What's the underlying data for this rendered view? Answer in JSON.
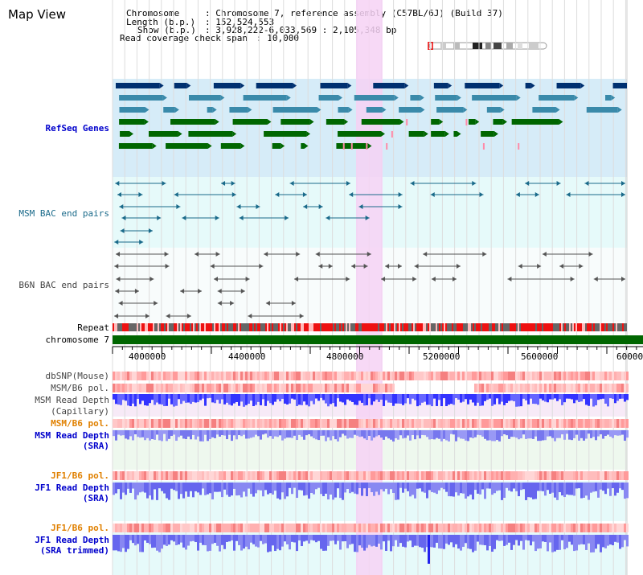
{
  "title": "Map View",
  "info": {
    "chromosome_key": "Chromosome",
    "chromosome_val": ": Chromosome 7, reference assembly (C57BL/6J) (Build 37)",
    "length_key": "Length (b.p.)",
    "length_val": ": 152,524,553",
    "show_key": "Show (b.p.)",
    "show_val": ": 3,928,222-6,033,569 : 2,105,348 bp",
    "span_key": "Read coverage check span",
    "span_val": ": 10,000"
  },
  "tracks": {
    "refseq": "RefSeq Genes",
    "msm_bac": "MSM BAC end pairs",
    "b6n_bac": "B6N BAC end pairs",
    "repeat": "Repeat",
    "chromosome": "chromosome 7",
    "dbsnp": "dbSNP(Mouse)",
    "msm_b6_pol_1": "MSM/B6 pol.",
    "msm_read_depth_cap_1": "MSM Read Depth",
    "msm_read_depth_cap_2": "(Capillary)",
    "msm_b6_pol_2": "MSM/B6 pol.",
    "msm_read_depth_sra_1": "MSM Read Depth",
    "msm_read_depth_sra_2": "(SRA)",
    "jf1_b6_pol_1": "JF1/B6 pol.",
    "jf1_read_depth_1": "JF1 Read Depth",
    "jf1_read_depth_2": "(SRA)",
    "jf1_b6_pol_2": "JF1/B6 pol.",
    "jf1_read_depth_trim_1": "JF1 Read Depth",
    "jf1_read_depth_trim_2": "(SRA trimmed)"
  },
  "axis": {
    "ticks": [
      "4000000",
      "4400000",
      "4800000",
      "5200000",
      "5600000",
      "6000000"
    ]
  },
  "colors": {
    "refseq_bg": "#d6ecf8",
    "bac_bg": "#e6fafa",
    "highlight": "#f6d2f4",
    "gene_dark": "#003070",
    "gene_mid": "#3a8aaa",
    "gene_green": "#006600",
    "chromosome_bar": "#006600",
    "repeat_red": "#ee1111",
    "depth_blue": "#3333ff"
  }
}
